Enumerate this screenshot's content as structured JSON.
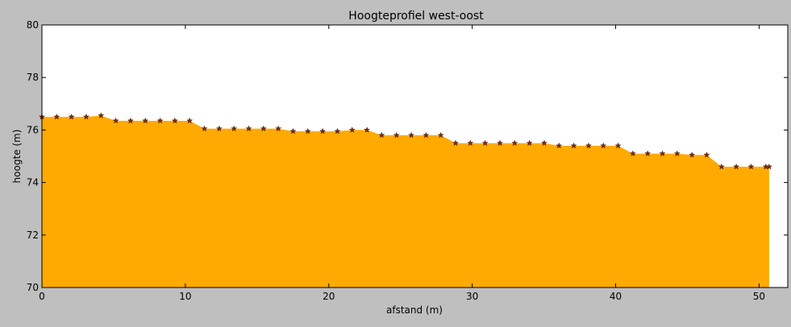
{
  "chart_data": {
    "type": "area",
    "title": "Hoogteprofiel west-oost",
    "xlabel": "afstand (m)",
    "ylabel": "hoogte (m)",
    "xlim": [
      0,
      52
    ],
    "ylim": [
      70,
      80
    ],
    "xticks": [
      "0",
      "10",
      "20",
      "30",
      "40",
      "50"
    ],
    "yticks": [
      "70",
      "72",
      "74",
      "76",
      "78",
      "80"
    ],
    "fill_color": "#ffaa00",
    "marker_color": "#7a2a10",
    "marker": "star",
    "grid": false,
    "series": [
      {
        "x": [
          0.0,
          1.03,
          2.06,
          3.09,
          4.12,
          5.15,
          6.18,
          7.21,
          8.24,
          9.27,
          10.3,
          11.33,
          12.36,
          13.39,
          14.42,
          15.45,
          16.48,
          17.51,
          18.54,
          19.57,
          20.6,
          21.63,
          22.66,
          23.69,
          24.72,
          25.75,
          26.78,
          27.81,
          28.84,
          29.87,
          30.9,
          31.93,
          32.96,
          33.99,
          35.02,
          36.05,
          37.08,
          38.11,
          39.14,
          40.17,
          41.2,
          42.23,
          43.26,
          44.29,
          45.32,
          46.35,
          47.38,
          48.41,
          49.44,
          50.47,
          50.7
        ],
        "values": [
          76.5,
          76.5,
          76.5,
          76.5,
          76.55,
          76.35,
          76.35,
          76.35,
          76.35,
          76.35,
          76.35,
          76.05,
          76.05,
          76.05,
          76.05,
          76.05,
          76.05,
          75.95,
          75.95,
          75.95,
          75.95,
          76.0,
          76.0,
          75.8,
          75.8,
          75.8,
          75.8,
          75.8,
          75.5,
          75.5,
          75.5,
          75.5,
          75.5,
          75.5,
          75.5,
          75.4,
          75.4,
          75.4,
          75.4,
          75.4,
          75.1,
          75.1,
          75.1,
          75.1,
          75.05,
          75.05,
          74.6,
          74.6,
          74.6,
          74.6,
          74.6
        ]
      }
    ]
  }
}
